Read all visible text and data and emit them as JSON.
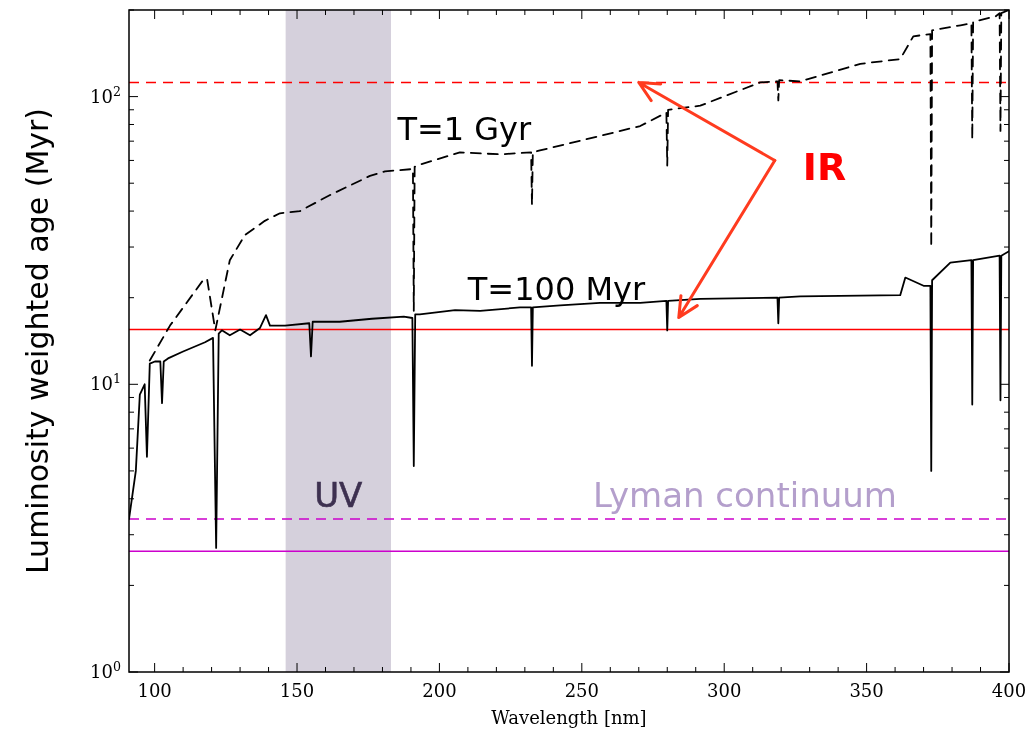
{
  "chart_data": {
    "type": "line",
    "xlabel": "Wavelength [nm]",
    "ylabel": "Luminosity weighted age (Myr)",
    "log": "y",
    "xlim": [
      91,
      400
    ],
    "ylim": [
      1,
      200
    ],
    "xticks": [
      {
        "value": 100,
        "label": "100"
      },
      {
        "value": 110,
        "label": null
      },
      {
        "value": 120,
        "label": null
      },
      {
        "value": 130,
        "label": null
      },
      {
        "value": 140,
        "label": null
      },
      {
        "value": 150,
        "label": "150"
      },
      {
        "value": 160,
        "label": null
      },
      {
        "value": 170,
        "label": null
      },
      {
        "value": 180,
        "label": null
      },
      {
        "value": 190,
        "label": null
      },
      {
        "value": 200,
        "label": "200"
      },
      {
        "value": 210,
        "label": null
      },
      {
        "value": 220,
        "label": null
      },
      {
        "value": 230,
        "label": null
      },
      {
        "value": 240,
        "label": null
      },
      {
        "value": 250,
        "label": "250"
      },
      {
        "value": 260,
        "label": null
      },
      {
        "value": 270,
        "label": null
      },
      {
        "value": 280,
        "label": null
      },
      {
        "value": 290,
        "label": null
      },
      {
        "value": 300,
        "label": "300"
      },
      {
        "value": 310,
        "label": null
      },
      {
        "value": 320,
        "label": null
      },
      {
        "value": 330,
        "label": null
      },
      {
        "value": 340,
        "label": null
      },
      {
        "value": 350,
        "label": "350"
      },
      {
        "value": 360,
        "label": null
      },
      {
        "value": 370,
        "label": null
      },
      {
        "value": 380,
        "label": null
      },
      {
        "value": 390,
        "label": null
      },
      {
        "value": 400,
        "label": "400"
      }
    ],
    "yticks": [
      {
        "value": 1,
        "label": "10$^{0}$"
      },
      {
        "value": 2,
        "label": null
      },
      {
        "value": 3,
        "label": null
      },
      {
        "value": 4,
        "label": null
      },
      {
        "value": 5,
        "label": null
      },
      {
        "value": 6,
        "label": null
      },
      {
        "value": 7,
        "label": null
      },
      {
        "value": 8,
        "label": null
      },
      {
        "value": 9,
        "label": null
      },
      {
        "value": 10,
        "label": "10$^{1}$"
      },
      {
        "value": 20,
        "label": null
      },
      {
        "value": 30,
        "label": null
      },
      {
        "value": 40,
        "label": null
      },
      {
        "value": 50,
        "label": null
      },
      {
        "value": 60,
        "label": null
      },
      {
        "value": 70,
        "label": null
      },
      {
        "value": 80,
        "label": null
      },
      {
        "value": 90,
        "label": null
      },
      {
        "value": 100,
        "label": "10$^{2}$"
      },
      {
        "value": 200,
        "label": null
      }
    ],
    "series": [
      {
        "name": "T=1 Gyr",
        "color": "#000000",
        "line_style": "dashed",
        "x": [
          98.3,
          105.4,
          117,
          118.4,
          121.3,
          126.4,
          131.7,
          138.7,
          144,
          151,
          161.6,
          175.6,
          180.9,
          190.7,
          191,
          191.3,
          193.1,
          207.2,
          221.3,
          232.2,
          232.5,
          232.8,
          235.3,
          256.4,
          270.5,
          279.7,
          280,
          280.3,
          291.6,
          312.6,
          318.7,
          319,
          319.3,
          326.7,
          347.8,
          361.8,
          366.4,
          372.4,
          372.7,
          373,
          383,
          386.8,
          387.1,
          387.4,
          395.3,
          396.7,
          397,
          397.3,
          400
        ],
        "values": [
          12.1,
          16,
          23,
          23.3,
          15.4,
          27,
          33,
          37,
          39.3,
          40,
          45.5,
          53,
          55,
          56,
          18,
          57,
          58,
          64,
          63,
          64,
          42,
          64,
          65,
          73,
          79,
          88,
          57.6,
          90,
          93,
          112,
          113,
          97,
          114,
          113,
          130,
          135,
          162,
          165,
          30,
          170,
          177,
          180,
          71,
          182,
          190,
          195,
          76,
          195,
          200
        ]
      },
      {
        "name": "T=100 Myr",
        "color": "#000000",
        "line_style": "solid",
        "x": [
          91,
          93.4,
          94.8,
          96.5,
          97.3,
          98.3,
          100.1,
          102,
          102.6,
          103.2,
          104.7,
          110,
          117.7,
          120.5,
          121.6,
          122.5,
          123.6,
          126.4,
          130,
          133.5,
          137,
          139.1,
          140.5,
          145.8,
          154.3,
          154.9,
          155.5,
          165,
          176.3,
          187.5,
          190.5,
          191,
          191.5,
          193.1,
          205.5,
          214.3,
          228.3,
          232.2,
          232.5,
          232.8,
          242.4,
          256.4,
          270.5,
          279.7,
          280,
          280.3,
          291.6,
          318.7,
          319,
          319.3,
          326.7,
          361.8,
          363.6,
          370,
          372.4,
          372.7,
          373,
          379.4,
          386.8,
          387.1,
          387.4,
          396.7,
          397,
          397.3,
          400
        ],
        "values": [
          3.4,
          5,
          9.2,
          10,
          5.6,
          11.8,
          12,
          12,
          8.6,
          12,
          12.3,
          13,
          14,
          14.5,
          2.7,
          15,
          15.4,
          14.8,
          15.5,
          14.8,
          15.7,
          17.4,
          16,
          16,
          16.3,
          12.5,
          16.5,
          16.5,
          16.9,
          17.2,
          17,
          5.2,
          17.5,
          17.5,
          18.1,
          18,
          18.5,
          18.5,
          11.6,
          18.5,
          18.8,
          19.2,
          19.2,
          19.5,
          15.4,
          19.5,
          19.8,
          20,
          16.3,
          20,
          20.2,
          20.4,
          23.5,
          22,
          22,
          5,
          23,
          26.5,
          27,
          8.5,
          27,
          28,
          8.8,
          28,
          29
        ]
      }
    ],
    "ref_lines": [
      {
        "axis": "y",
        "value": 112,
        "color": "#ff0000",
        "line_style": "dashed"
      },
      {
        "axis": "y",
        "value": 15.5,
        "color": "#ff0000",
        "line_style": "solid"
      },
      {
        "axis": "y",
        "value": 3.4,
        "color": "#cc00cc",
        "line_style": "dashed",
        "label": "Lyman continuum"
      },
      {
        "axis": "y",
        "value": 2.63,
        "color": "#cc00cc",
        "line_style": "solid"
      }
    ],
    "bands": [
      {
        "axis": "x",
        "from": 146,
        "to": 183,
        "label": "UV",
        "color": "#d5d0dc"
      }
    ],
    "annotations": [
      {
        "text": "IR",
        "x": 270,
        "y": 112
      }
    ]
  }
}
